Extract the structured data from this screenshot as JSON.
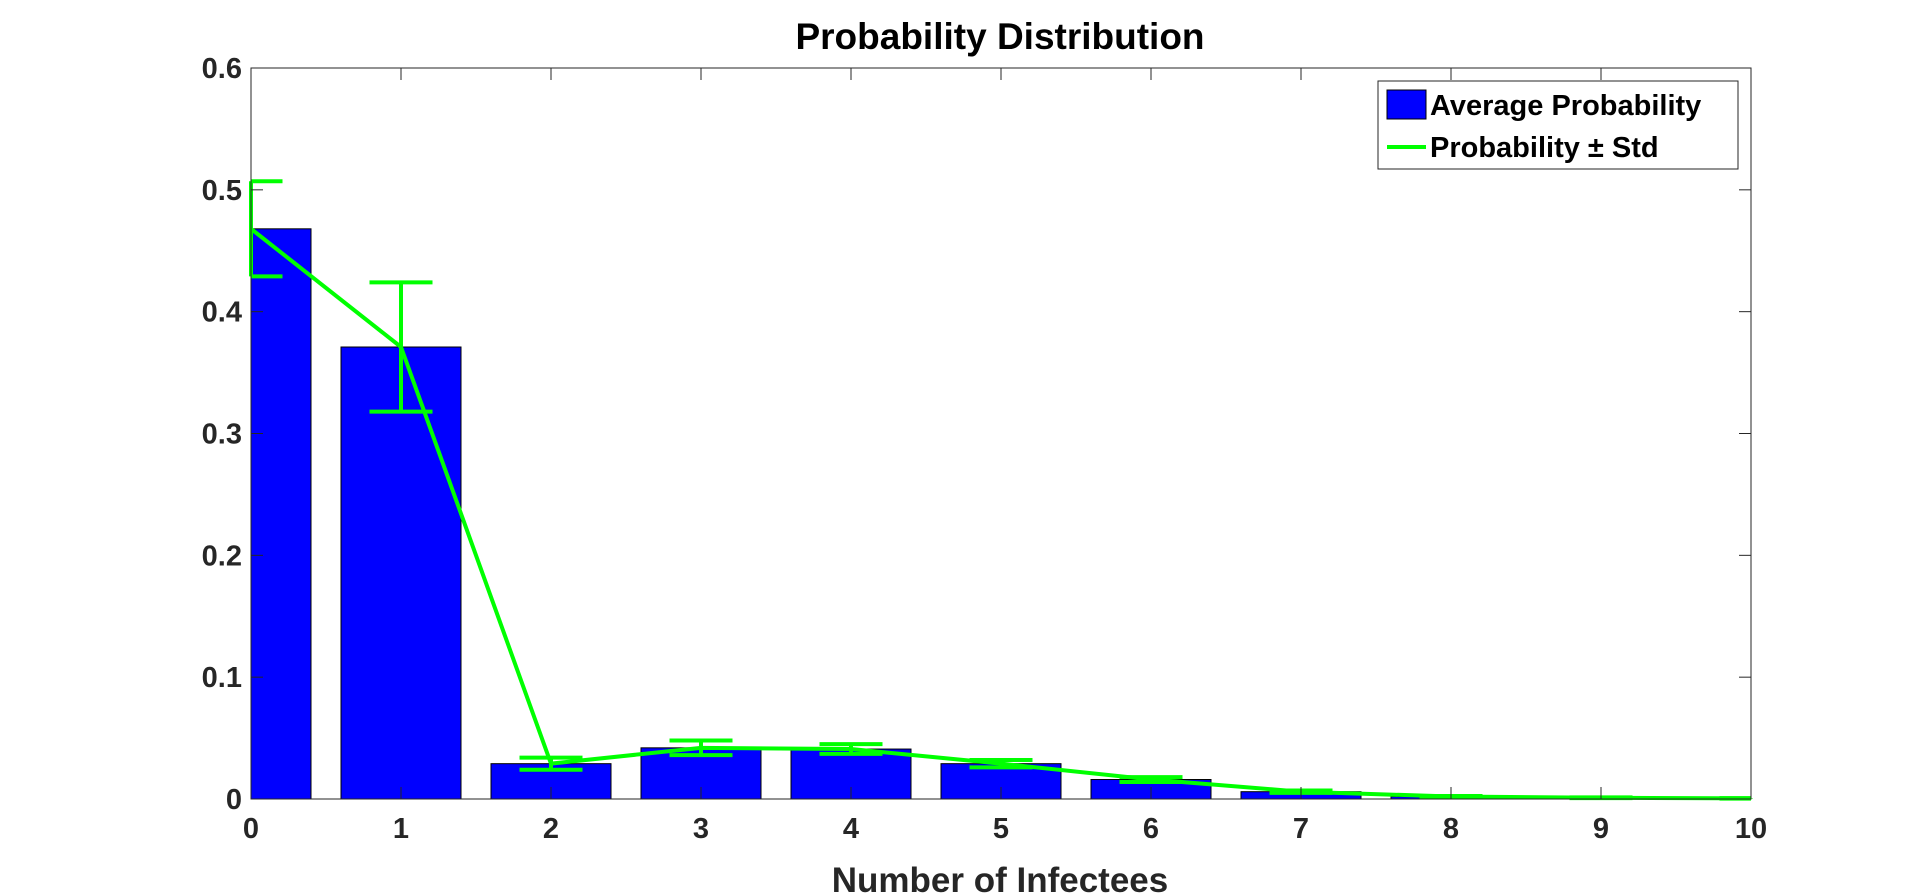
{
  "chart_data": {
    "type": "bar",
    "title": "Probability Distribution",
    "xlabel": "Number of Infectees",
    "ylabel": "",
    "xlim": [
      0,
      10
    ],
    "ylim": [
      0,
      0.6
    ],
    "xticks": [
      "0",
      "1",
      "2",
      "3",
      "4",
      "5",
      "6",
      "7",
      "8",
      "9",
      "10"
    ],
    "yticks": [
      "0",
      "0.1",
      "0.2",
      "0.3",
      "0.4",
      "0.5",
      "0.6"
    ],
    "x": [
      0,
      1,
      2,
      3,
      4,
      5,
      6,
      7,
      8,
      9,
      10
    ],
    "series": [
      {
        "name": "Average Probability",
        "kind": "bar",
        "color": "#0000FF",
        "values": [
          0.468,
          0.371,
          0.029,
          0.042,
          0.041,
          0.029,
          0.016,
          0.006,
          0.002,
          0.001,
          0.0005
        ]
      },
      {
        "name": "Probability ± Std",
        "kind": "line-errorbar",
        "color": "#00FF00",
        "values": [
          0.468,
          0.371,
          0.029,
          0.042,
          0.041,
          0.029,
          0.016,
          0.006,
          0.002,
          0.001,
          0.0005
        ],
        "errors": [
          0.039,
          0.053,
          0.005,
          0.006,
          0.004,
          0.003,
          0.002,
          0.001,
          0.0005,
          0.0003,
          0.0002
        ]
      }
    ],
    "grid": false,
    "legend_position": "top-right"
  }
}
